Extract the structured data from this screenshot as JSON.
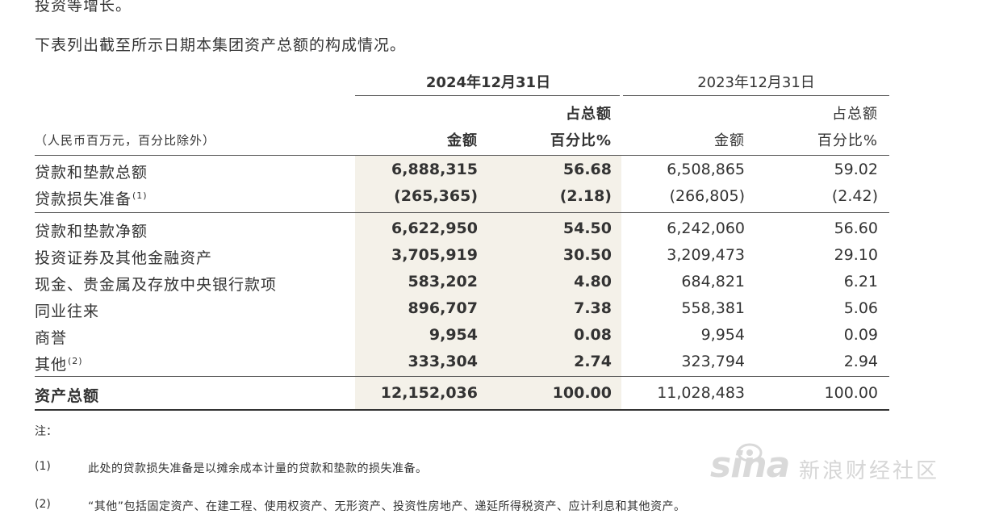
{
  "top_fragment": "投资等增长。",
  "intro": "下表列出截至所示日期本集团资产总额的构成情况。",
  "header": {
    "year_2024": "2024年12月31日",
    "year_2023": "2023年12月31日",
    "pct_top_2024": "占总额",
    "pct_top_2023": "占总额",
    "amount_2024": "金额",
    "pct_2024": "百分比%",
    "amount_2023": "金额",
    "pct_2023": "百分比%",
    "unit": "（人民币百万元，百分比除外）"
  },
  "rows_a": [
    {
      "label": "贷款和垫款总额",
      "sup": "",
      "v2024": "6,888,315",
      "p2024": "56.68",
      "v2023": "6,508,865",
      "p2023": "59.02"
    },
    {
      "label": "贷款损失准备",
      "sup": "(1)",
      "v2024": "(265,365)",
      "p2024": "(2.18)",
      "v2023": "(266,805)",
      "p2023": "(2.42)"
    }
  ],
  "rows_b": [
    {
      "label": "贷款和垫款净额",
      "sup": "",
      "v2024": "6,622,950",
      "p2024": "54.50",
      "v2023": "6,242,060",
      "p2023": "56.60"
    },
    {
      "label": "投资证券及其他金融资产",
      "sup": "",
      "v2024": "3,705,919",
      "p2024": "30.50",
      "v2023": "3,209,473",
      "p2023": "29.10"
    },
    {
      "label": "现金、贵金属及存放中央银行款项",
      "sup": "",
      "v2024": "583,202",
      "p2024": "4.80",
      "v2023": "684,821",
      "p2023": "6.21"
    },
    {
      "label": "同业往来",
      "sup": "",
      "v2024": "896,707",
      "p2024": "7.38",
      "v2023": "558,381",
      "p2023": "5.06"
    },
    {
      "label": "商誉",
      "sup": "",
      "v2024": "9,954",
      "p2024": "0.08",
      "v2023": "9,954",
      "p2023": "0.09"
    },
    {
      "label": "其他",
      "sup": "(2)",
      "v2024": "333,304",
      "p2024": "2.74",
      "v2023": "323,794",
      "p2023": "2.94"
    }
  ],
  "total": {
    "label": "资产总额",
    "v2024": "12,152,036",
    "p2024": "100.00",
    "v2023": "11,028,483",
    "p2023": "100.00"
  },
  "notes": {
    "title": "注：",
    "items": [
      {
        "num": "(1)",
        "text": "此处的贷款损失准备是以摊余成本计量的贷款和垫款的损失准备。"
      },
      {
        "num": "(2)",
        "text": "“其他”包括固定资产、在建工程、使用权资产、无形资产、投资性房地产、递延所得税资产、应计利息和其他资产。"
      }
    ]
  },
  "watermark": {
    "logo": "sina",
    "text": "新浪财经社区"
  },
  "colors": {
    "shade": "#f4f1e9",
    "text": "#333333"
  }
}
